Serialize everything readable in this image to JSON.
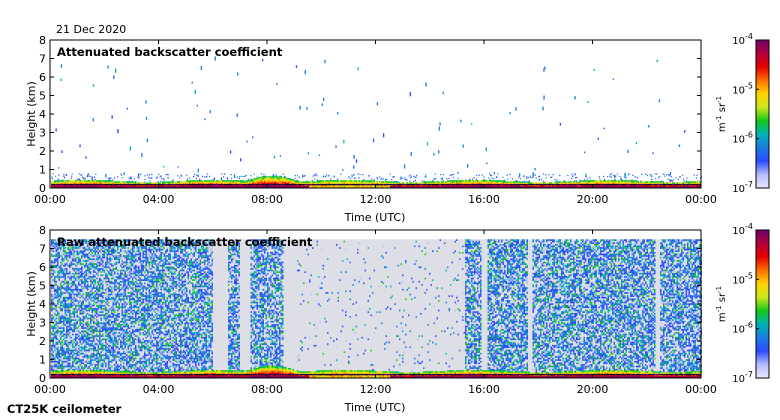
{
  "date_label": "21 Dec 2020",
  "instrument": "CT25K ceilometer",
  "colors": {
    "background": "#ffffff",
    "no_signal": "#dedee6",
    "colormap": [
      "#eae8ff",
      "#b4bcff",
      "#2c4bff",
      "#1a7be0",
      "#00b4b4",
      "#14c814",
      "#cde61e",
      "#ffd200",
      "#ff6e00",
      "#e60000",
      "#b4003c",
      "#6e006e"
    ]
  },
  "chart_data": [
    {
      "type": "heatmap",
      "title": "Attenuated backscatter coefficient",
      "xlabel": "Time (UTC)",
      "ylabel": "Height (km)",
      "xticks": [
        "00:00",
        "04:00",
        "08:00",
        "12:00",
        "16:00",
        "20:00",
        "00:00"
      ],
      "xlim_hours": [
        0,
        24
      ],
      "yticks": [
        "0",
        "1",
        "2",
        "3",
        "4",
        "5",
        "6",
        "7",
        "8"
      ],
      "ylim_km": [
        0,
        8
      ],
      "colorbar": {
        "scale": "log",
        "range": [
          1e-07,
          0.0001
        ],
        "ticks": [
          {
            "base": "10",
            "exp": "-4"
          },
          {
            "base": "10",
            "exp": "-5"
          },
          {
            "base": "10",
            "exp": "-6"
          },
          {
            "base": "10",
            "exp": "-7"
          }
        ],
        "unit": {
          "m": "m",
          "m_exp": "-1",
          "sr": "sr",
          "sr_exp": "-1"
        }
      },
      "data_description": "Strong near-surface signal below ~0.4 km all day; sparse noise returns above; aerosol layer near 08:00 up to ~0.7 km",
      "layers": [
        {
          "start_hour": 0,
          "end_hour": 24,
          "top_km": 0.35,
          "value": "high"
        },
        {
          "start_hour": 7.2,
          "end_hour": 9.0,
          "top_km": 0.7,
          "value": "medium"
        }
      ],
      "speckle_density": "sparse"
    },
    {
      "type": "heatmap",
      "title": "Raw attenuated backscatter coefficient",
      "xlabel": "Time (UTC)",
      "ylabel": "Height (km)",
      "xticks": [
        "00:00",
        "04:00",
        "08:00",
        "12:00",
        "16:00",
        "20:00",
        "00:00"
      ],
      "xlim_hours": [
        0,
        24
      ],
      "yticks": [
        "0",
        "1",
        "2",
        "3",
        "4",
        "5",
        "6",
        "7",
        "8"
      ],
      "ylim_km": [
        0,
        8
      ],
      "top_of_data_km": 7.5,
      "colorbar": {
        "scale": "log",
        "range": [
          1e-07,
          0.0001
        ],
        "ticks": [
          {
            "base": "10",
            "exp": "-4"
          },
          {
            "base": "10",
            "exp": "-5"
          },
          {
            "base": "10",
            "exp": "-6"
          },
          {
            "base": "10",
            "exp": "-7"
          }
        ],
        "unit": {
          "m": "m",
          "m_exp": "-1",
          "sr": "sr",
          "sr_exp": "-1"
        }
      },
      "data_description": "Dense background noise in blue shades from 0 to ~7.5 km; large low-noise (grey) gap from ~09:00 to ~15:15 UTC; strong near-surface signal throughout",
      "noise_gaps_hours": [
        [
          6.0,
          6.55
        ],
        [
          7.0,
          7.35
        ],
        [
          8.6,
          9.0
        ],
        [
          9.0,
          15.25
        ],
        [
          15.9,
          16.1
        ],
        [
          17.6,
          17.75
        ],
        [
          22.3,
          22.45
        ]
      ],
      "sparse_intervals_hours": [
        [
          9.0,
          15.25
        ]
      ],
      "speckle_density": "dense"
    }
  ]
}
